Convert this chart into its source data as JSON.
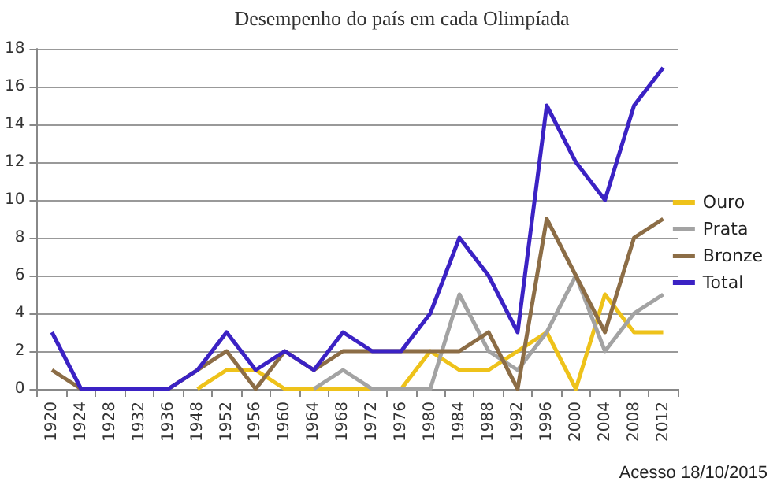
{
  "chart_data": {
    "type": "line",
    "title": "Desempenho do país em cada Olimpíada",
    "categories": [
      "1920",
      "1924",
      "1928",
      "1932",
      "1936",
      "1948",
      "1952",
      "1956",
      "1960",
      "1964",
      "1968",
      "1972",
      "1976",
      "1980",
      "1984",
      "1988",
      "1992",
      "1996",
      "2000",
      "2004",
      "2008",
      "2012"
    ],
    "series": [
      {
        "name": "Ouro",
        "color": "#eec21a",
        "values": [
          null,
          null,
          null,
          null,
          null,
          0,
          1,
          1,
          0,
          0,
          0,
          0,
          0,
          2,
          1,
          1,
          2,
          3,
          0,
          5,
          3,
          3
        ]
      },
      {
        "name": "Prata",
        "color": "#a3a3a3",
        "values": [
          null,
          null,
          null,
          null,
          null,
          null,
          null,
          null,
          null,
          0,
          1,
          0,
          0,
          0,
          5,
          2,
          1,
          3,
          6,
          2,
          4,
          5
        ]
      },
      {
        "name": "Bronze",
        "color": "#8c6d46",
        "values": [
          1,
          0,
          0,
          0,
          0,
          1,
          2,
          0,
          2,
          1,
          2,
          2,
          2,
          2,
          2,
          3,
          0,
          9,
          6,
          3,
          8,
          9
        ]
      },
      {
        "name": "Total",
        "color": "#3b22c4",
        "values": [
          3,
          0,
          0,
          0,
          0,
          1,
          3,
          1,
          2,
          1,
          3,
          2,
          2,
          4,
          8,
          6,
          3,
          15,
          12,
          10,
          15,
          17
        ]
      }
    ],
    "ylim": [
      0,
      18
    ],
    "yticks": [
      0,
      2,
      4,
      6,
      8,
      10,
      12,
      14,
      16,
      18
    ],
    "grid": "y",
    "legend": "right",
    "marker": "none",
    "line_style": "solid",
    "annotations": [
      "Acesso 18/10/2015"
    ]
  }
}
